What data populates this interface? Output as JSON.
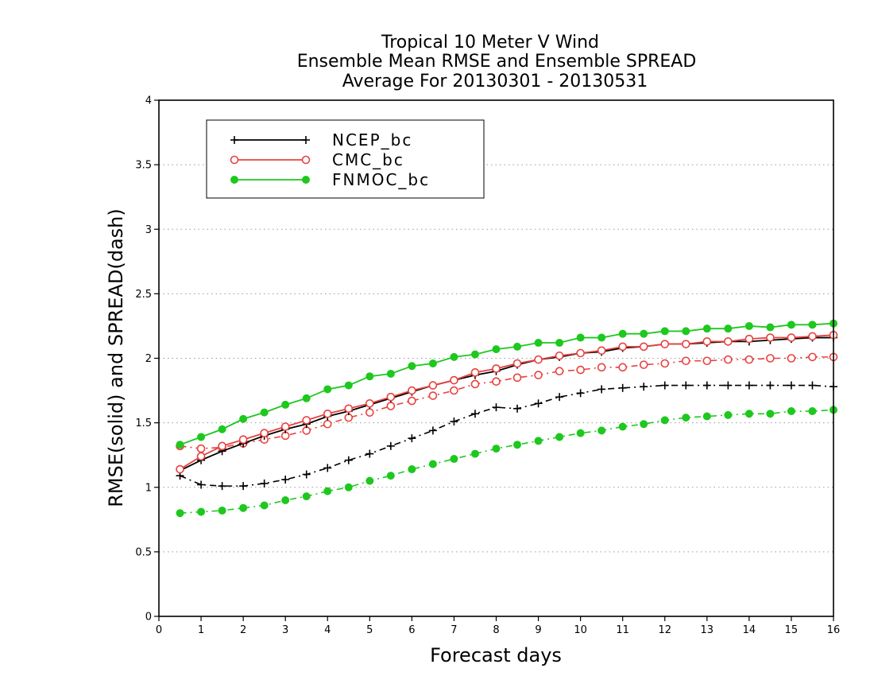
{
  "chart_data": {
    "type": "line",
    "title_lines": [
      "Tropical 10 Meter V Wind",
      "Ensemble Mean RMSE and Ensemble SPREAD",
      "Average For 20130301 - 20130531"
    ],
    "xlabel": "Forecast days",
    "ylabel": "RMSE(solid) and SPREAD(dash)",
    "xlim": [
      0,
      16
    ],
    "ylim": [
      0,
      4
    ],
    "xticks": [
      0,
      1,
      2,
      3,
      4,
      5,
      6,
      7,
      8,
      9,
      10,
      11,
      12,
      13,
      14,
      15,
      16
    ],
    "yticks": [
      0,
      0.5,
      1,
      1.5,
      2,
      2.5,
      3,
      3.5,
      4
    ],
    "grid": "horizontal dotted",
    "legend_position": "top-left",
    "x": [
      0.5,
      1,
      1.5,
      2,
      2.5,
      3,
      3.5,
      4,
      4.5,
      5,
      5.5,
      6,
      6.5,
      7,
      7.5,
      8,
      8.5,
      9,
      9.5,
      10,
      10.5,
      11,
      11.5,
      12,
      12.5,
      13,
      13.5,
      14,
      14.5,
      15,
      15.5,
      16
    ],
    "series": [
      {
        "name": "NCEP_bc",
        "metric": "RMSE",
        "style": "solid",
        "color": "#000000",
        "marker": "plus",
        "in_legend": true,
        "values": [
          1.13,
          1.21,
          1.28,
          1.34,
          1.4,
          1.45,
          1.49,
          1.55,
          1.59,
          1.64,
          1.69,
          1.74,
          1.79,
          1.83,
          1.87,
          1.9,
          1.95,
          1.99,
          2.01,
          2.04,
          2.05,
          2.08,
          2.09,
          2.11,
          2.11,
          2.12,
          2.13,
          2.13,
          2.14,
          2.15,
          2.16,
          2.16
        ]
      },
      {
        "name": "CMC_bc",
        "metric": "RMSE",
        "style": "solid",
        "color": "#e8423f",
        "marker": "open-circle",
        "in_legend": true,
        "values": [
          1.14,
          1.24,
          1.32,
          1.37,
          1.42,
          1.47,
          1.52,
          1.57,
          1.61,
          1.65,
          1.7,
          1.75,
          1.79,
          1.83,
          1.89,
          1.92,
          1.96,
          1.99,
          2.02,
          2.04,
          2.06,
          2.09,
          2.09,
          2.11,
          2.11,
          2.13,
          2.13,
          2.15,
          2.16,
          2.16,
          2.17,
          2.18
        ]
      },
      {
        "name": "FNMOC_bc",
        "metric": "RMSE",
        "style": "solid",
        "color": "#1ec81e",
        "marker": "filled-circle",
        "in_legend": true,
        "values": [
          1.33,
          1.39,
          1.45,
          1.53,
          1.58,
          1.64,
          1.69,
          1.76,
          1.79,
          1.86,
          1.88,
          1.94,
          1.96,
          2.01,
          2.03,
          2.07,
          2.09,
          2.12,
          2.12,
          2.16,
          2.16,
          2.19,
          2.19,
          2.21,
          2.21,
          2.23,
          2.23,
          2.25,
          2.24,
          2.26,
          2.26,
          2.27
        ]
      },
      {
        "name": "NCEP_bc",
        "metric": "SPREAD",
        "style": "dash",
        "color": "#000000",
        "marker": "plus",
        "in_legend": false,
        "values": [
          1.09,
          1.02,
          1.01,
          1.01,
          1.03,
          1.06,
          1.1,
          1.15,
          1.21,
          1.26,
          1.32,
          1.38,
          1.44,
          1.51,
          1.57,
          1.62,
          1.61,
          1.65,
          1.7,
          1.73,
          1.76,
          1.77,
          1.78,
          1.79,
          1.79,
          1.79,
          1.79,
          1.79,
          1.79,
          1.79,
          1.79,
          1.78
        ]
      },
      {
        "name": "CMC_bc",
        "metric": "SPREAD",
        "style": "dash",
        "color": "#e8423f",
        "marker": "open-circle",
        "in_legend": false,
        "values": [
          1.32,
          1.3,
          1.31,
          1.34,
          1.37,
          1.4,
          1.44,
          1.49,
          1.54,
          1.58,
          1.63,
          1.67,
          1.71,
          1.75,
          1.8,
          1.82,
          1.85,
          1.87,
          1.9,
          1.91,
          1.93,
          1.93,
          1.95,
          1.96,
          1.98,
          1.98,
          1.99,
          1.99,
          2.0,
          2.0,
          2.01,
          2.01
        ]
      },
      {
        "name": "FNMOC_bc",
        "metric": "SPREAD",
        "style": "dash",
        "color": "#1ec81e",
        "marker": "filled-circle",
        "in_legend": false,
        "values": [
          0.8,
          0.81,
          0.82,
          0.84,
          0.86,
          0.9,
          0.93,
          0.97,
          1.0,
          1.05,
          1.09,
          1.14,
          1.18,
          1.22,
          1.26,
          1.3,
          1.33,
          1.36,
          1.39,
          1.42,
          1.44,
          1.47,
          1.49,
          1.52,
          1.54,
          1.55,
          1.56,
          1.57,
          1.57,
          1.59,
          1.59,
          1.6
        ]
      }
    ]
  }
}
